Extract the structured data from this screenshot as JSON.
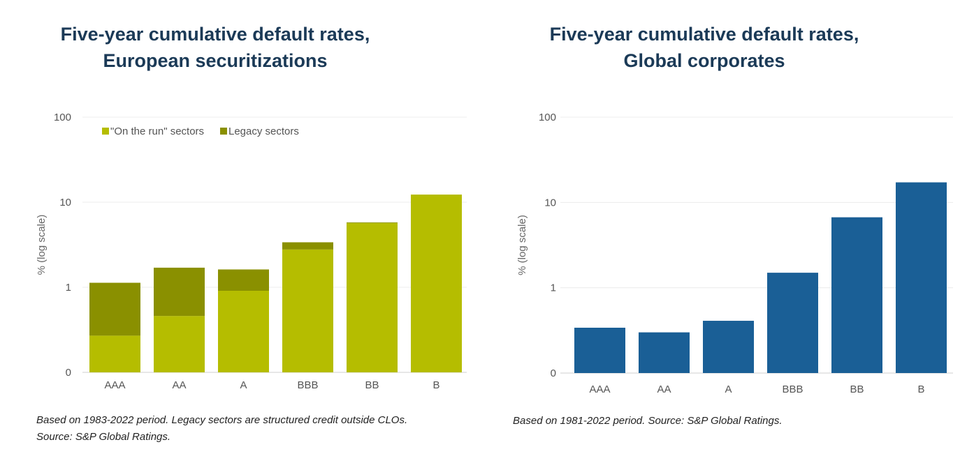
{
  "chart_data": [
    {
      "type": "bar",
      "stacked": true,
      "title_lines": [
        "Five-year cumulative default rates,",
        "European securitizations"
      ],
      "ylabel": "% (log scale)",
      "yscale": "log",
      "yticks": [
        {
          "value": 0.1,
          "label": "0"
        },
        {
          "value": 1,
          "label": "1"
        },
        {
          "value": 10,
          "label": "10"
        },
        {
          "value": 100,
          "label": "100"
        }
      ],
      "ylim": [
        0.1,
        100
      ],
      "grid": true,
      "legend_position": "top-left",
      "categories": [
        "AAA",
        "AA",
        "A",
        "BBB",
        "BB",
        "B"
      ],
      "series": [
        {
          "name": "\"On the run\" sectors",
          "color": "#b5bd00",
          "values": [
            0.27,
            0.46,
            0.91,
            2.78,
            5.7,
            12.3
          ]
        },
        {
          "name": "Legacy sectors",
          "color": "#8a9000",
          "values": [
            0.86,
            1.24,
            0.71,
            0.6,
            0.1,
            0
          ]
        }
      ],
      "footnote_lines": [
        "Based on 1983-2022 period. Legacy sectors are structured credit outside CLOs.",
        "Source: S&P Global Ratings."
      ]
    },
    {
      "type": "bar",
      "stacked": false,
      "title_lines": [
        "Five-year cumulative default rates,",
        "Global corporates"
      ],
      "ylabel": "% (log scale)",
      "yscale": "log",
      "yticks": [
        {
          "value": 0.1,
          "label": "0"
        },
        {
          "value": 1,
          "label": "1"
        },
        {
          "value": 10,
          "label": "10"
        },
        {
          "value": 100,
          "label": "100"
        }
      ],
      "ylim": [
        0.1,
        100
      ],
      "grid": true,
      "categories": [
        "AAA",
        "AA",
        "A",
        "BBB",
        "BB",
        "B"
      ],
      "series": [
        {
          "color": "#1a5f96",
          "values": [
            0.34,
            0.3,
            0.41,
            1.5,
            6.7,
            17.2
          ]
        }
      ],
      "footnote_lines": [
        "Based on 1981-2022 period. Source: S&P Global Ratings."
      ]
    }
  ]
}
